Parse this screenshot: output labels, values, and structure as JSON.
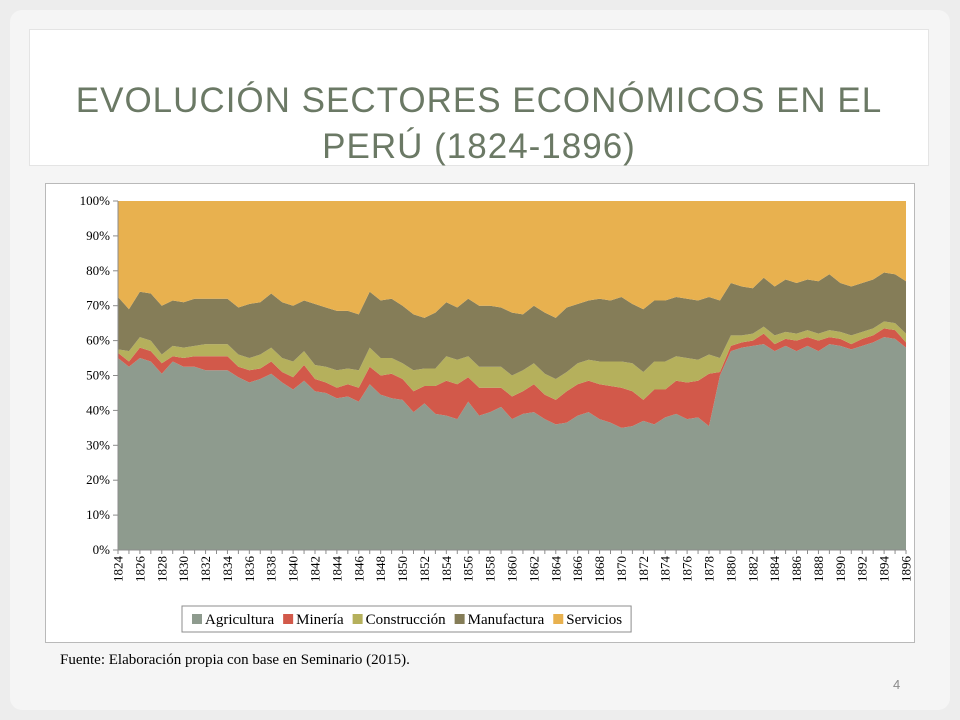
{
  "slide": {
    "title": "Evolución sectores económicos en el Perú (1824-1896)",
    "source": "Fuente: Elaboración propia con base en Seminario (2015).",
    "page_number": "4"
  },
  "chart_data": {
    "type": "area",
    "stacked": true,
    "percent": true,
    "ylim": [
      0,
      100
    ],
    "yticks": [
      "0%",
      "10%",
      "20%",
      "30%",
      "40%",
      "50%",
      "60%",
      "70%",
      "80%",
      "90%",
      "100%"
    ],
    "xstart": 1824,
    "xend": 1896,
    "xtick_step": 2,
    "legend_position": "bottom",
    "grid": false,
    "series": [
      {
        "name": "Agricultura",
        "color": "#8e9b8e",
        "values": [
          55,
          52.5,
          55,
          54,
          50.5,
          54,
          52.5,
          52.5,
          51.5,
          51.5,
          51.5,
          49.5,
          48,
          49,
          50.5,
          48,
          46,
          48.5,
          45.5,
          45,
          43.5,
          44,
          42.5,
          47.5,
          44.5,
          43.5,
          43,
          39.5,
          42,
          39,
          38.5,
          37.5,
          42.5,
          38.5,
          39.5,
          41,
          37.5,
          39,
          39.5,
          37.5,
          36,
          36.5,
          38.5,
          39.5,
          37.5,
          36.5,
          35,
          35.5,
          37,
          36,
          38,
          39,
          37.5,
          38,
          35.5,
          50,
          57,
          58,
          58.5,
          59,
          57,
          58.5,
          57,
          58.5,
          57,
          59,
          58.5,
          57.5,
          58.5,
          59.5,
          61,
          60.5,
          58
        ]
      },
      {
        "name": "Minería",
        "color": "#d2594a",
        "values": [
          1.5,
          1.5,
          3,
          3,
          3,
          1.5,
          2.5,
          3,
          4,
          4,
          4,
          3,
          3.5,
          3,
          3.5,
          3,
          3.5,
          4.5,
          3.5,
          3,
          3,
          3.5,
          4,
          5,
          5.5,
          7,
          6,
          6,
          5,
          8,
          10,
          10,
          7,
          8,
          7,
          5.5,
          6.5,
          6.5,
          8,
          7,
          7,
          9,
          9,
          9,
          10,
          10.5,
          11.5,
          10,
          6,
          10,
          8,
          9.5,
          10.5,
          10.5,
          15,
          1,
          1.5,
          1.5,
          1.5,
          3,
          2,
          2,
          3,
          2.5,
          3,
          2,
          2,
          1.5,
          2,
          2,
          2.5,
          2.5,
          1.5
        ]
      },
      {
        "name": "Construcción",
        "color": "#b5b05c",
        "values": [
          1,
          3,
          3,
          3,
          2.5,
          3,
          3,
          3,
          3.5,
          3.5,
          3.5,
          3.5,
          3.5,
          4,
          4,
          4,
          4.5,
          4,
          4,
          4.5,
          5,
          4.5,
          5,
          5.5,
          5,
          4.5,
          4.5,
          6,
          5,
          5,
          7,
          7,
          6,
          6,
          6,
          6,
          6,
          6,
          6,
          6,
          6,
          5.5,
          6,
          6,
          6.5,
          7,
          7.5,
          8,
          8,
          8,
          8,
          7,
          7,
          6,
          5.5,
          4,
          3,
          2,
          2,
          2,
          2.5,
          2,
          2,
          2,
          2,
          2,
          2,
          2.5,
          2,
          2,
          2,
          2,
          2.5
        ]
      },
      {
        "name": "Manufactura",
        "color": "#857d58",
        "values": [
          15,
          12,
          13,
          13.5,
          14,
          13,
          13,
          13.5,
          13,
          13,
          13,
          13.5,
          15.5,
          15,
          15.5,
          16,
          16,
          14.5,
          17.5,
          17,
          17,
          16.5,
          16,
          16,
          16.5,
          17,
          16.5,
          16,
          14.5,
          16,
          15.5,
          15,
          16.5,
          17.5,
          17.5,
          17,
          18,
          16,
          16.5,
          17.5,
          17.5,
          18.5,
          17,
          17,
          18,
          17.5,
          18.5,
          17,
          18,
          17.5,
          17.5,
          17,
          17,
          17,
          16.5,
          16.5,
          15,
          14,
          13,
          14,
          14,
          15,
          14.5,
          14.5,
          15,
          16,
          14,
          14,
          14,
          14,
          14,
          14,
          15
        ]
      },
      {
        "name": "Servicios",
        "color": "#e8b14f",
        "values": [
          27.5,
          31,
          26,
          26.5,
          30,
          28.5,
          29,
          28,
          28,
          28,
          28,
          30.5,
          29.5,
          29,
          26.5,
          29,
          30,
          28.5,
          29.5,
          30.5,
          31.5,
          31.5,
          32.5,
          26,
          28.5,
          28,
          30,
          32.5,
          33.5,
          32,
          29,
          30.5,
          28,
          30,
          30,
          30.5,
          32,
          32.5,
          30,
          32,
          33.5,
          30.5,
          29.5,
          28.5,
          28,
          28.5,
          27.5,
          29.5,
          31,
          28.5,
          28.5,
          27.5,
          28,
          28.5,
          27.5,
          28.5,
          23.5,
          24.5,
          25,
          22,
          24.5,
          22.5,
          23.5,
          22.5,
          23,
          21,
          23.5,
          24.5,
          23.5,
          22.5,
          20.5,
          21,
          23
        ]
      }
    ]
  }
}
